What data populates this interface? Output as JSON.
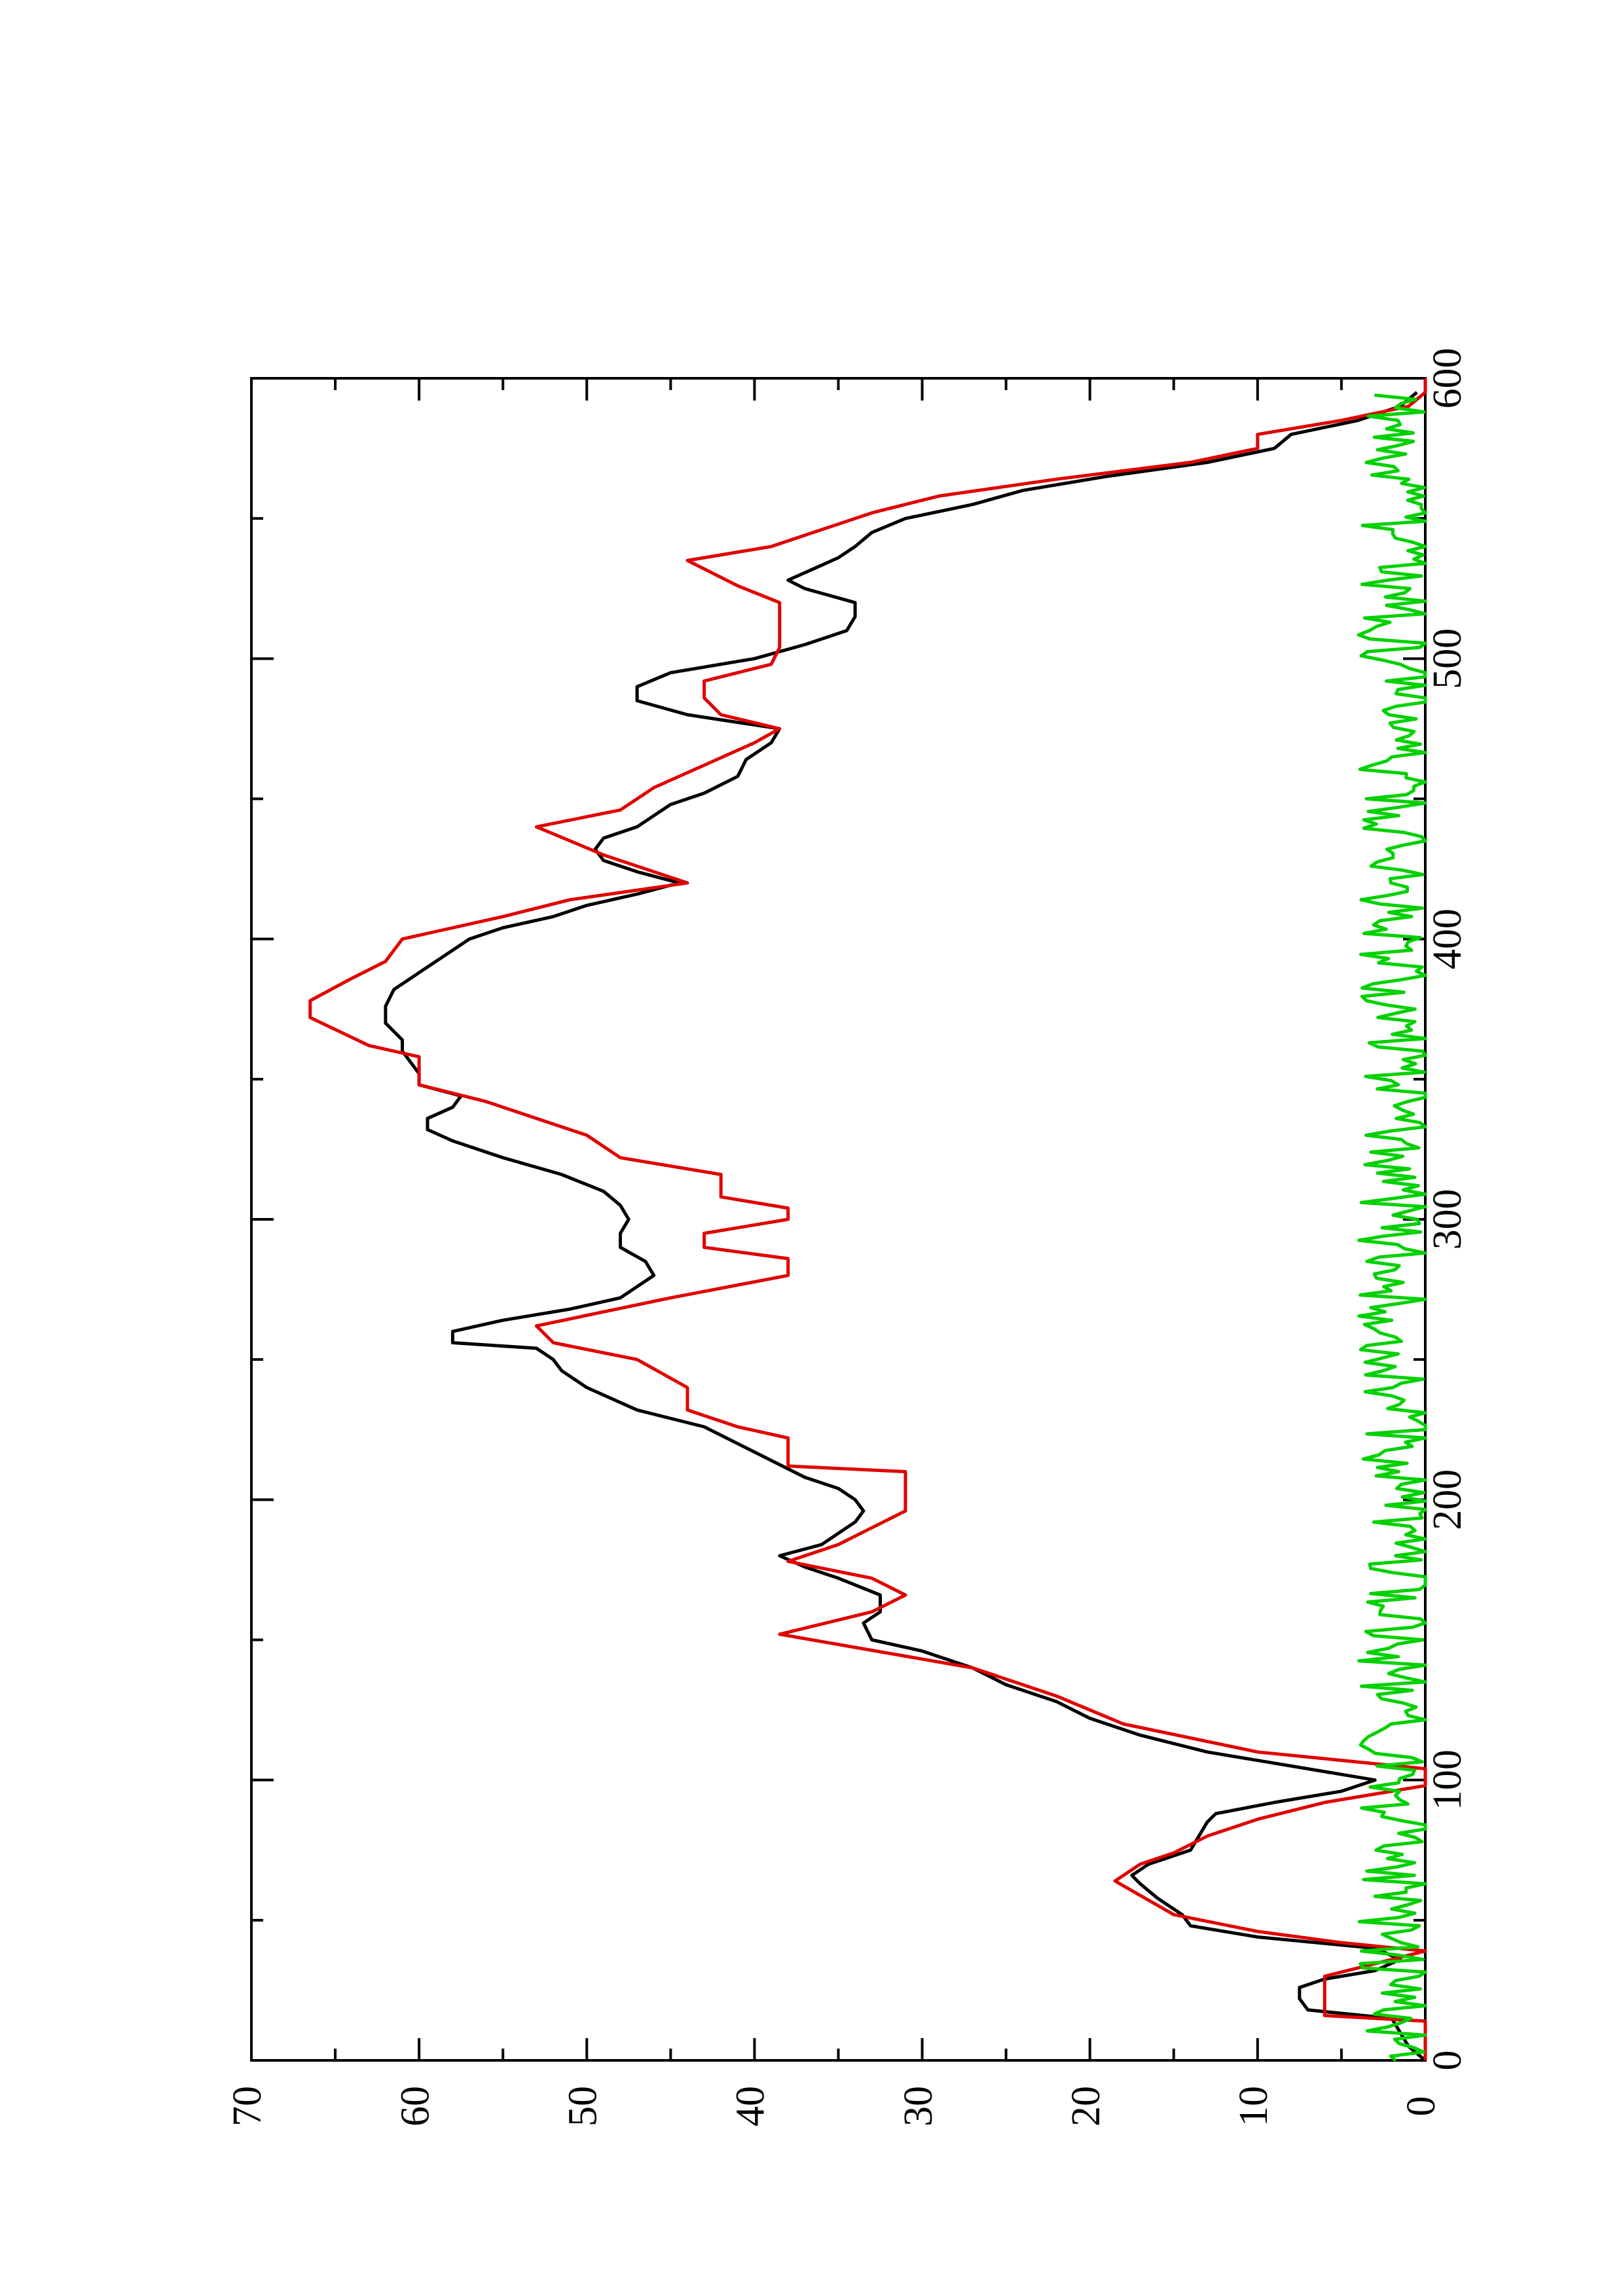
{
  "chart_data": {
    "type": "line",
    "orientation": "rotated 90° counter-clockwise (page in landscape)",
    "title": "",
    "xlabel": "",
    "ylabel": "",
    "xlim": [
      0,
      600
    ],
    "ylim": [
      0,
      70
    ],
    "x_ticks": [
      "0",
      "100",
      "200",
      "300",
      "400",
      "500",
      "600"
    ],
    "x_minor_ticks": [
      50,
      150,
      250,
      350,
      450,
      550
    ],
    "y_ticks": [
      "0",
      "10",
      "20",
      "30",
      "40",
      "50",
      "60",
      "70"
    ],
    "y_minor_ticks": [
      5,
      15,
      25,
      35,
      45,
      55,
      65
    ],
    "grid": false,
    "legend": "none",
    "series": [
      {
        "color": "#000000",
        "style": "smooth",
        "points": [
          [
            0,
            0
          ],
          [
            5,
            1
          ],
          [
            10,
            1.5
          ],
          [
            15,
            2
          ],
          [
            18,
            7
          ],
          [
            22,
            7.5
          ],
          [
            26,
            7.5
          ],
          [
            29,
            6
          ],
          [
            32,
            3
          ],
          [
            36,
            1.5
          ],
          [
            40,
            3
          ],
          [
            44,
            10
          ],
          [
            48,
            14
          ],
          [
            52,
            14.5
          ],
          [
            58,
            16
          ],
          [
            63,
            17
          ],
          [
            66,
            17.5
          ],
          [
            70,
            16.5
          ],
          [
            75,
            14
          ],
          [
            80,
            13.5
          ],
          [
            85,
            13
          ],
          [
            88,
            12.5
          ],
          [
            92,
            9
          ],
          [
            96,
            5
          ],
          [
            100,
            3
          ],
          [
            104,
            7
          ],
          [
            110,
            13
          ],
          [
            116,
            17
          ],
          [
            122,
            20
          ],
          [
            128,
            22
          ],
          [
            134,
            25
          ],
          [
            140,
            27
          ],
          [
            146,
            30
          ],
          [
            150,
            33
          ],
          [
            156,
            33.5
          ],
          [
            160,
            32.5
          ],
          [
            166,
            32.5
          ],
          [
            172,
            35
          ],
          [
            176,
            37
          ],
          [
            180,
            38.5
          ],
          [
            184,
            36
          ],
          [
            188,
            35
          ],
          [
            192,
            34
          ],
          [
            196,
            33.5
          ],
          [
            200,
            34
          ],
          [
            204,
            35
          ],
          [
            208,
            37
          ],
          [
            214,
            39
          ],
          [
            220,
            41
          ],
          [
            226,
            43
          ],
          [
            232,
            47
          ],
          [
            240,
            50
          ],
          [
            246,
            51.5
          ],
          [
            250,
            52
          ],
          [
            254,
            53
          ],
          [
            256,
            58
          ],
          [
            260,
            58
          ],
          [
            264,
            55
          ],
          [
            268,
            51
          ],
          [
            272,
            48
          ],
          [
            276,
            47
          ],
          [
            280,
            46
          ],
          [
            285,
            46.5
          ],
          [
            290,
            48
          ],
          [
            295,
            48
          ],
          [
            300,
            47.5
          ],
          [
            305,
            48
          ],
          [
            310,
            49
          ],
          [
            316,
            51.5
          ],
          [
            322,
            55
          ],
          [
            328,
            58
          ],
          [
            332,
            59.5
          ],
          [
            336,
            59.5
          ],
          [
            340,
            58
          ],
          [
            344,
            57.5
          ],
          [
            348,
            60
          ],
          [
            352,
            60
          ],
          [
            356,
            60.5
          ],
          [
            360,
            61
          ],
          [
            364,
            61
          ],
          [
            370,
            62
          ],
          [
            376,
            62
          ],
          [
            382,
            61.5
          ],
          [
            388,
            60
          ],
          [
            392,
            59
          ],
          [
            396,
            58
          ],
          [
            400,
            57
          ],
          [
            404,
            55
          ],
          [
            408,
            52
          ],
          [
            412,
            50
          ],
          [
            416,
            47
          ],
          [
            420,
            44.5
          ],
          [
            424,
            47
          ],
          [
            428,
            49
          ],
          [
            432,
            49.5
          ],
          [
            436,
            49
          ],
          [
            440,
            47
          ],
          [
            444,
            46
          ],
          [
            448,
            45
          ],
          [
            452,
            43
          ],
          [
            458,
            41
          ],
          [
            464,
            40.5
          ],
          [
            470,
            39
          ],
          [
            475,
            38.5
          ],
          [
            480,
            44
          ],
          [
            485,
            47
          ],
          [
            490,
            47
          ],
          [
            495,
            45
          ],
          [
            500,
            40
          ],
          [
            505,
            37
          ],
          [
            510,
            34.5
          ],
          [
            515,
            34
          ],
          [
            520,
            34
          ],
          [
            525,
            37
          ],
          [
            528,
            38
          ],
          [
            532,
            36.5
          ],
          [
            536,
            35
          ],
          [
            540,
            34
          ],
          [
            545,
            33
          ],
          [
            550,
            31
          ],
          [
            555,
            27
          ],
          [
            560,
            24
          ],
          [
            565,
            19
          ],
          [
            570,
            13
          ],
          [
            575,
            9
          ],
          [
            580,
            8
          ],
          [
            585,
            4
          ],
          [
            590,
            1.5
          ],
          [
            595,
            0.5
          ]
        ]
      },
      {
        "color": "#e00000",
        "style": "step",
        "points": [
          [
            0,
            0
          ],
          [
            14,
            0
          ],
          [
            16,
            6
          ],
          [
            30,
            6
          ],
          [
            33,
            4
          ],
          [
            36,
            2
          ],
          [
            39,
            0
          ],
          [
            42,
            5
          ],
          [
            46,
            10
          ],
          [
            52,
            15
          ],
          [
            64,
            18.5
          ],
          [
            70,
            17
          ],
          [
            74,
            15
          ],
          [
            80,
            13
          ],
          [
            86,
            10
          ],
          [
            92,
            6
          ],
          [
            98,
            0
          ],
          [
            104,
            0
          ],
          [
            110,
            10
          ],
          [
            120,
            18
          ],
          [
            130,
            22
          ],
          [
            140,
            27
          ],
          [
            152,
            38.5
          ],
          [
            160,
            33
          ],
          [
            166,
            31
          ],
          [
            172,
            33
          ],
          [
            178,
            38
          ],
          [
            184,
            35
          ],
          [
            190,
            33
          ],
          [
            196,
            31
          ],
          [
            210,
            31
          ],
          [
            212,
            38
          ],
          [
            222,
            38
          ],
          [
            226,
            41
          ],
          [
            232,
            44
          ],
          [
            240,
            44
          ],
          [
            250,
            47
          ],
          [
            256,
            52
          ],
          [
            262,
            53
          ],
          [
            272,
            45
          ],
          [
            280,
            38
          ],
          [
            286,
            38
          ],
          [
            290,
            43
          ],
          [
            295,
            43
          ],
          [
            300,
            38
          ],
          [
            304,
            38
          ],
          [
            308,
            42
          ],
          [
            316,
            42
          ],
          [
            322,
            48
          ],
          [
            330,
            50
          ],
          [
            338,
            54
          ],
          [
            342,
            56
          ],
          [
            348,
            60
          ],
          [
            358,
            60
          ],
          [
            362,
            63
          ],
          [
            372,
            66.5
          ],
          [
            378,
            66.5
          ],
          [
            386,
            64
          ],
          [
            392,
            62
          ],
          [
            400,
            61
          ],
          [
            408,
            55
          ],
          [
            414,
            51
          ],
          [
            420,
            44
          ],
          [
            430,
            49
          ],
          [
            440,
            53
          ],
          [
            446,
            48
          ],
          [
            454,
            46
          ],
          [
            462,
            43
          ],
          [
            470,
            40
          ],
          [
            475,
            38.5
          ],
          [
            480,
            42
          ],
          [
            486,
            43
          ],
          [
            492,
            43
          ],
          [
            498,
            39
          ],
          [
            504,
            38.5
          ],
          [
            515,
            38.5
          ],
          [
            520,
            38.5
          ],
          [
            526,
            41
          ],
          [
            535,
            44
          ],
          [
            540,
            39
          ],
          [
            546,
            36
          ],
          [
            552,
            33
          ],
          [
            558,
            29
          ],
          [
            564,
            22
          ],
          [
            570,
            14
          ],
          [
            575,
            10
          ],
          [
            580,
            10
          ],
          [
            585,
            5
          ],
          [
            590,
            1
          ],
          [
            595,
            0
          ],
          [
            600,
            0
          ]
        ]
      },
      {
        "color": "#00d000",
        "style": "noise",
        "mean": 1.8,
        "amplitude": 2.2,
        "x_range": [
          0,
          595
        ]
      }
    ]
  }
}
